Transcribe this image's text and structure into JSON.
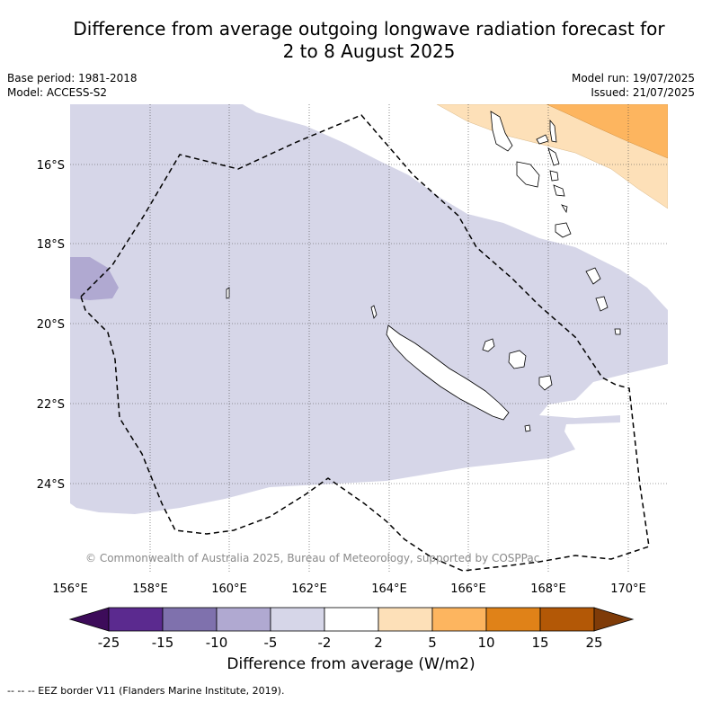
{
  "title": {
    "line1": "Difference from average outgoing longwave radiation forecast for",
    "line2": "2 to 8 August 2025"
  },
  "info_left": {
    "base_period": "Base period: 1981-2018",
    "model": "Model: ACCESS-S2"
  },
  "info_right": {
    "model_run": "Model run: 19/07/2025",
    "issued": "Issued: 21/07/2025"
  },
  "map": {
    "lon_ticks": [
      "156°E",
      "158°E",
      "160°E",
      "162°E",
      "164°E",
      "166°E",
      "168°E",
      "170°E"
    ],
    "lat_ticks": [
      "16°S",
      "18°S",
      "20°S",
      "22°S",
      "24°S"
    ],
    "copyright": "© Commonwealth of Australia 2025, Bureau of Meteorology, supported by COSPPac",
    "colors": {
      "light_lavender": "#d6d6e8",
      "medium_lavender": "#b0a9d1",
      "light_peach": "#fde0b8",
      "orange": "#fdb55f"
    }
  },
  "colorbar": {
    "labels": [
      "-25",
      "-15",
      "-10",
      "-5",
      "-2",
      "2",
      "5",
      "10",
      "15",
      "25"
    ],
    "colors": [
      "#3d0c5a",
      "#5b2a8f",
      "#7f71ad",
      "#b0a9d1",
      "#d6d6e8",
      "#ffffff",
      "#fde0b8",
      "#fdb55f",
      "#e08218",
      "#b35806",
      "#7f3b08"
    ],
    "label": "Difference from average (W/m2)"
  },
  "footnote": "-- -- -- EEZ border V11 (Flanders Marine Institute, 2019)."
}
